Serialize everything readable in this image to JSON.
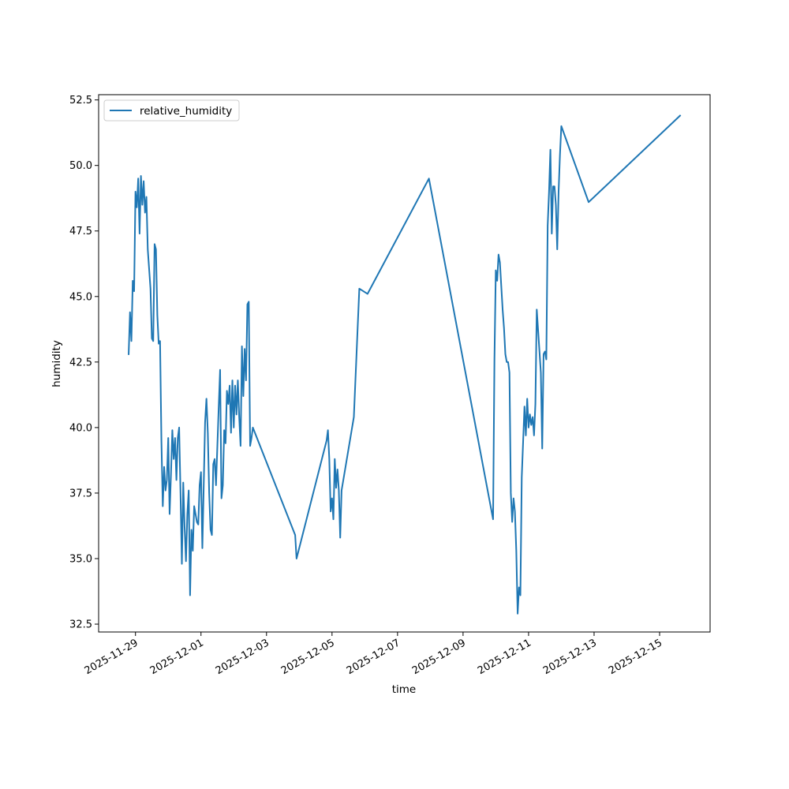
{
  "chart_data": {
    "type": "line",
    "title": "",
    "xlabel": "time",
    "ylabel": "humidity",
    "x_axis_kind": "date",
    "xlim": [
      "2025-11-27T21:00",
      "2025-12-16T13:00"
    ],
    "ylim": [
      32.2,
      52.7
    ],
    "xticks": [
      "2025-11-29",
      "2025-12-01",
      "2025-12-03",
      "2025-12-05",
      "2025-12-07",
      "2025-12-09",
      "2025-12-11",
      "2025-12-13",
      "2025-12-15"
    ],
    "yticks": [
      32.5,
      35.0,
      37.5,
      40.0,
      42.5,
      45.0,
      47.5,
      50.0,
      52.5
    ],
    "ytick_labels": [
      "32.5",
      "35.0",
      "37.5",
      "40.0",
      "42.5",
      "45.0",
      "47.5",
      "50.0",
      "52.5"
    ],
    "grid": false,
    "legend_position": "upper-left",
    "series": [
      {
        "name": "relative_humidity",
        "color": "#1f77b4",
        "points": [
          [
            "2025-11-28T19:00",
            42.8
          ],
          [
            "2025-11-28T20:00",
            44.4
          ],
          [
            "2025-11-28T21:00",
            43.3
          ],
          [
            "2025-11-28T22:00",
            45.6
          ],
          [
            "2025-11-28T23:00",
            45.2
          ],
          [
            "2025-11-29T00:00",
            49.0
          ],
          [
            "2025-11-29T01:00",
            48.4
          ],
          [
            "2025-11-29T02:00",
            49.5
          ],
          [
            "2025-11-29T03:00",
            47.4
          ],
          [
            "2025-11-29T04:00",
            49.6
          ],
          [
            "2025-11-29T05:00",
            48.5
          ],
          [
            "2025-11-29T06:00",
            49.4
          ],
          [
            "2025-11-29T07:00",
            48.2
          ],
          [
            "2025-11-29T08:00",
            48.8
          ],
          [
            "2025-11-29T09:00",
            46.8
          ],
          [
            "2025-11-29T11:00",
            45.3
          ],
          [
            "2025-11-29T12:00",
            43.4
          ],
          [
            "2025-11-29T13:00",
            43.3
          ],
          [
            "2025-11-29T14:00",
            47.0
          ],
          [
            "2025-11-29T15:00",
            46.8
          ],
          [
            "2025-11-29T16:00",
            44.3
          ],
          [
            "2025-11-29T17:00",
            43.2
          ],
          [
            "2025-11-29T18:00",
            43.3
          ],
          [
            "2025-11-29T19:00",
            39.5
          ],
          [
            "2025-11-29T20:00",
            37.0
          ],
          [
            "2025-11-29T21:00",
            38.5
          ],
          [
            "2025-11-29T22:00",
            37.6
          ],
          [
            "2025-11-29T23:00",
            38.0
          ],
          [
            "2025-11-30T00:00",
            39.6
          ],
          [
            "2025-11-30T01:00",
            36.7
          ],
          [
            "2025-11-30T02:00",
            38.2
          ],
          [
            "2025-11-30T03:00",
            39.9
          ],
          [
            "2025-11-30T04:00",
            38.8
          ],
          [
            "2025-11-30T05:00",
            39.6
          ],
          [
            "2025-11-30T06:00",
            38.0
          ],
          [
            "2025-11-30T07:00",
            39.6
          ],
          [
            "2025-11-30T08:00",
            40.0
          ],
          [
            "2025-11-30T09:00",
            37.5
          ],
          [
            "2025-11-30T10:00",
            34.8
          ],
          [
            "2025-11-30T11:00",
            37.9
          ],
          [
            "2025-11-30T12:00",
            36.2
          ],
          [
            "2025-11-30T13:00",
            34.9
          ],
          [
            "2025-11-30T14:00",
            36.7
          ],
          [
            "2025-11-30T15:00",
            37.6
          ],
          [
            "2025-11-30T16:00",
            33.6
          ],
          [
            "2025-11-30T17:00",
            36.1
          ],
          [
            "2025-11-30T18:00",
            35.3
          ],
          [
            "2025-11-30T19:00",
            37.0
          ],
          [
            "2025-11-30T21:00",
            36.4
          ],
          [
            "2025-11-30T22:00",
            36.3
          ],
          [
            "2025-11-30T23:00",
            37.8
          ],
          [
            "2025-12-01T00:00",
            38.3
          ],
          [
            "2025-12-01T01:00",
            35.4
          ],
          [
            "2025-12-01T03:00",
            40.2
          ],
          [
            "2025-12-01T04:00",
            41.1
          ],
          [
            "2025-12-01T05:00",
            39.8
          ],
          [
            "2025-12-01T06:00",
            37.5
          ],
          [
            "2025-12-01T07:00",
            36.1
          ],
          [
            "2025-12-01T08:00",
            35.9
          ],
          [
            "2025-12-01T09:00",
            38.6
          ],
          [
            "2025-12-01T10:00",
            38.8
          ],
          [
            "2025-12-01T11:00",
            37.8
          ],
          [
            "2025-12-01T12:00",
            39.3
          ],
          [
            "2025-12-01T13:00",
            40.8
          ],
          [
            "2025-12-01T14:00",
            42.2
          ],
          [
            "2025-12-01T15:00",
            37.3
          ],
          [
            "2025-12-01T16:00",
            37.8
          ],
          [
            "2025-12-01T17:00",
            39.9
          ],
          [
            "2025-12-01T18:00",
            39.4
          ],
          [
            "2025-12-01T19:00",
            41.4
          ],
          [
            "2025-12-01T20:00",
            40.9
          ],
          [
            "2025-12-01T21:00",
            41.6
          ],
          [
            "2025-12-01T22:00",
            39.8
          ],
          [
            "2025-12-01T23:00",
            41.8
          ],
          [
            "2025-12-02T00:00",
            40.0
          ],
          [
            "2025-12-02T01:00",
            41.6
          ],
          [
            "2025-12-02T02:00",
            40.5
          ],
          [
            "2025-12-02T03:00",
            41.8
          ],
          [
            "2025-12-02T04:00",
            40.4
          ],
          [
            "2025-12-02T05:00",
            39.3
          ],
          [
            "2025-12-02T06:00",
            43.1
          ],
          [
            "2025-12-02T07:00",
            41.2
          ],
          [
            "2025-12-02T08:00",
            43.0
          ],
          [
            "2025-12-02T09:00",
            41.8
          ],
          [
            "2025-12-02T10:00",
            44.7
          ],
          [
            "2025-12-02T11:00",
            44.8
          ],
          [
            "2025-12-02T12:00",
            39.3
          ],
          [
            "2025-12-02T13:00",
            39.6
          ],
          [
            "2025-12-02T14:00",
            40.0
          ],
          [
            "2025-12-03T21:00",
            35.9
          ],
          [
            "2025-12-03T22:00",
            35.0
          ],
          [
            "2025-12-04T20:00",
            39.5
          ],
          [
            "2025-12-04T21:00",
            39.9
          ],
          [
            "2025-12-04T22:00",
            38.8
          ],
          [
            "2025-12-04T23:00",
            36.8
          ],
          [
            "2025-12-05T00:00",
            37.3
          ],
          [
            "2025-12-05T01:00",
            36.5
          ],
          [
            "2025-12-05T02:00",
            38.8
          ],
          [
            "2025-12-05T03:00",
            37.7
          ],
          [
            "2025-12-05T04:00",
            38.4
          ],
          [
            "2025-12-05T05:00",
            37.6
          ],
          [
            "2025-12-05T06:00",
            35.8
          ],
          [
            "2025-12-05T07:00",
            37.6
          ],
          [
            "2025-12-05T16:00",
            40.4
          ],
          [
            "2025-12-05T20:00",
            45.3
          ],
          [
            "2025-12-06T02:00",
            45.1
          ],
          [
            "2025-12-07T23:00",
            49.5
          ],
          [
            "2025-12-09T22:00",
            36.5
          ],
          [
            "2025-12-09T23:00",
            42.6
          ],
          [
            "2025-12-10T00:00",
            46.0
          ],
          [
            "2025-12-10T01:00",
            45.6
          ],
          [
            "2025-12-10T02:00",
            46.6
          ],
          [
            "2025-12-10T03:00",
            46.3
          ],
          [
            "2025-12-10T04:00",
            45.4
          ],
          [
            "2025-12-10T05:00",
            44.5
          ],
          [
            "2025-12-10T06:00",
            43.8
          ],
          [
            "2025-12-10T07:00",
            42.8
          ],
          [
            "2025-12-10T08:00",
            42.5
          ],
          [
            "2025-12-10T09:00",
            42.5
          ],
          [
            "2025-12-10T10:00",
            42.1
          ],
          [
            "2025-12-10T11:00",
            37.5
          ],
          [
            "2025-12-10T12:00",
            36.4
          ],
          [
            "2025-12-10T13:00",
            37.3
          ],
          [
            "2025-12-10T14:00",
            36.8
          ],
          [
            "2025-12-10T15:00",
            35.3
          ],
          [
            "2025-12-10T16:00",
            32.9
          ],
          [
            "2025-12-10T17:00",
            33.9
          ],
          [
            "2025-12-10T18:00",
            33.6
          ],
          [
            "2025-12-10T19:00",
            38.1
          ],
          [
            "2025-12-10T21:00",
            40.8
          ],
          [
            "2025-12-10T22:00",
            39.7
          ],
          [
            "2025-12-10T23:00",
            41.1
          ],
          [
            "2025-12-11T00:00",
            40.0
          ],
          [
            "2025-12-11T01:00",
            40.5
          ],
          [
            "2025-12-11T02:00",
            40.1
          ],
          [
            "2025-12-11T03:00",
            40.4
          ],
          [
            "2025-12-11T04:00",
            39.7
          ],
          [
            "2025-12-11T05:00",
            40.9
          ],
          [
            "2025-12-11T06:00",
            44.5
          ],
          [
            "2025-12-11T07:00",
            43.7
          ],
          [
            "2025-12-11T09:00",
            42.1
          ],
          [
            "2025-12-11T10:00",
            39.2
          ],
          [
            "2025-12-11T11:00",
            42.8
          ],
          [
            "2025-12-11T12:00",
            42.9
          ],
          [
            "2025-12-11T13:00",
            42.6
          ],
          [
            "2025-12-11T14:00",
            47.7
          ],
          [
            "2025-12-11T15:00",
            49.0
          ],
          [
            "2025-12-11T16:00",
            50.6
          ],
          [
            "2025-12-11T17:00",
            47.4
          ],
          [
            "2025-12-11T18:00",
            49.2
          ],
          [
            "2025-12-11T19:00",
            49.2
          ],
          [
            "2025-12-11T20:00",
            48.5
          ],
          [
            "2025-12-11T21:00",
            46.8
          ],
          [
            "2025-12-11T22:00",
            49.0
          ],
          [
            "2025-12-11T23:00",
            50.4
          ],
          [
            "2025-12-12T00:00",
            51.5
          ],
          [
            "2025-12-12T20:00",
            48.6
          ],
          [
            "2025-12-15T15:00",
            51.9
          ]
        ]
      }
    ]
  }
}
